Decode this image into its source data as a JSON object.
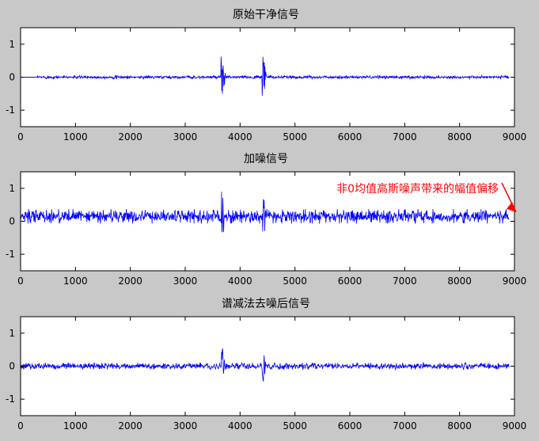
{
  "figure": {
    "background": "#c8c8c8",
    "axes_background": "#ffffff",
    "signal_color": "#0000ff",
    "annotation_color": "#ff0000"
  },
  "chart_data": [
    {
      "type": "line",
      "title": "原始干净信号",
      "xlabel": "",
      "ylabel": "",
      "xlim": [
        0,
        9000
      ],
      "ylim": [
        -1.5,
        1.5
      ],
      "xticks": [
        0,
        1000,
        2000,
        3000,
        4000,
        5000,
        6000,
        7000,
        8000,
        9000
      ],
      "yticks": [
        -1,
        0,
        1
      ],
      "series": [
        {
          "offset": 0,
          "noise_amplitude": 0.05,
          "start_x": 300,
          "end_x": 8900,
          "bursts": [
            {
              "start": 3650,
              "end": 3950,
              "peak": 1.0
            },
            {
              "start": 4400,
              "end": 4700,
              "peak": 0.95
            }
          ]
        }
      ]
    },
    {
      "type": "line",
      "title": "加噪信号",
      "xlabel": "",
      "ylabel": "",
      "xlim": [
        0,
        9000
      ],
      "ylim": [
        -1.5,
        1.5
      ],
      "xticks": [
        0,
        1000,
        2000,
        3000,
        4000,
        5000,
        6000,
        7000,
        8000,
        9000
      ],
      "yticks": [
        -1,
        0,
        1
      ],
      "annotation": {
        "text": "非0均值高斯噪声带来的幅值偏移",
        "arrow_to_x": 9000,
        "arrow_to_y": 0.28
      },
      "series": [
        {
          "offset": 0.15,
          "noise_amplitude": 0.22,
          "start_x": 0,
          "end_x": 8900,
          "bursts": [
            {
              "start": 3650,
              "end": 3950,
              "peak": 1.2
            },
            {
              "start": 4400,
              "end": 4700,
              "peak": 1.1
            }
          ]
        }
      ]
    },
    {
      "type": "line",
      "title": "谱减法去噪后信号",
      "xlabel": "",
      "ylabel": "",
      "xlim": [
        0,
        9000
      ],
      "ylim": [
        -1.5,
        1.5
      ],
      "xticks": [
        0,
        1000,
        2000,
        3000,
        4000,
        5000,
        6000,
        7000,
        8000,
        9000
      ],
      "yticks": [
        -1,
        0,
        1
      ],
      "series": [
        {
          "offset": 0,
          "noise_amplitude": 0.1,
          "start_x": 0,
          "end_x": 8900,
          "bursts": [
            {
              "start": 3650,
              "end": 3950,
              "peak": 0.85
            },
            {
              "start": 4400,
              "end": 4700,
              "peak": 0.7
            }
          ]
        }
      ]
    }
  ]
}
